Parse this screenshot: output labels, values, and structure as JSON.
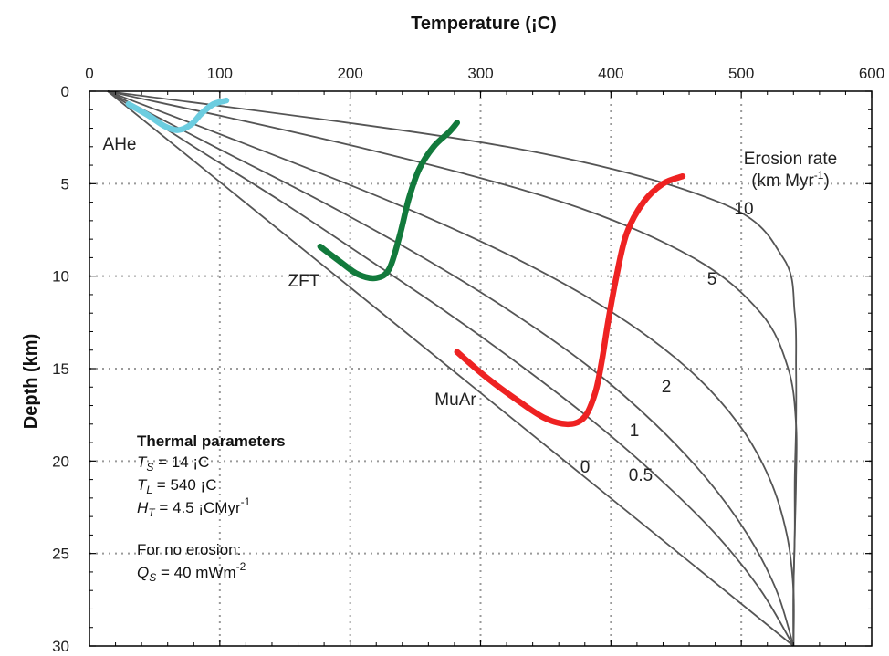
{
  "chart_data": {
    "type": "line",
    "title": "",
    "xlabel": "Temperature (¡C)",
    "ylabel": "Depth (km)",
    "xlim": [
      0,
      600
    ],
    "ylim": [
      30,
      0
    ],
    "x_axis_position": "top",
    "y_inverted": true,
    "grid": true,
    "grid_style": "dotted",
    "x_ticks": [
      0,
      100,
      200,
      300,
      400,
      500,
      600
    ],
    "y_ticks": [
      0,
      5,
      10,
      15,
      20,
      25,
      30
    ],
    "series": [
      {
        "name": "0",
        "color": "#555555",
        "points": [
          [
            14,
            0
          ],
          [
            540,
            30
          ]
        ]
      },
      {
        "name": "0.5",
        "color": "#555555",
        "points": [
          [
            14,
            0
          ],
          [
            80,
            3
          ],
          [
            148,
            6
          ],
          [
            212,
            9
          ],
          [
            275,
            12
          ],
          [
            334,
            15
          ],
          [
            389,
            18
          ],
          [
            438,
            21
          ],
          [
            481,
            24
          ],
          [
            515,
            27
          ],
          [
            540,
            30
          ]
        ]
      },
      {
        "name": "1",
        "color": "#555555",
        "points": [
          [
            14,
            0
          ],
          [
            96,
            3
          ],
          [
            179,
            6
          ],
          [
            256,
            9
          ],
          [
            325,
            12
          ],
          [
            385,
            15
          ],
          [
            434,
            18
          ],
          [
            474,
            21
          ],
          [
            505,
            24
          ],
          [
            527,
            27
          ],
          [
            540,
            30
          ]
        ]
      },
      {
        "name": "2",
        "color": "#555555",
        "points": [
          [
            14,
            0
          ],
          [
            125,
            3
          ],
          [
            232,
            6
          ],
          [
            326,
            9
          ],
          [
            402,
            12
          ],
          [
            459,
            15
          ],
          [
            498,
            18
          ],
          [
            522,
            21
          ],
          [
            535,
            24
          ],
          [
            540,
            27
          ],
          [
            540,
            30
          ]
        ]
      },
      {
        "name": "5",
        "color": "#555555",
        "points": [
          [
            14,
            0
          ],
          [
            205,
            3
          ],
          [
            363,
            6
          ],
          [
            463,
            9
          ],
          [
            515,
            12
          ],
          [
            536,
            15
          ],
          [
            542,
            18
          ],
          [
            542,
            21
          ],
          [
            541,
            24
          ],
          [
            540,
            27
          ],
          [
            540,
            30
          ]
        ]
      },
      {
        "name": "10",
        "color": "#555555",
        "points": [
          [
            14,
            0
          ],
          [
            320,
            3
          ],
          [
            483,
            6
          ],
          [
            532,
            9
          ],
          [
            541,
            12
          ],
          [
            542,
            15
          ],
          [
            542,
            18
          ],
          [
            541,
            21
          ],
          [
            541,
            24
          ],
          [
            540,
            27
          ],
          [
            540,
            30
          ]
        ]
      }
    ],
    "annotations": [
      {
        "name": "AHe",
        "color": "#6ccde0",
        "points": [
          [
            30,
            0.7
          ],
          [
            45,
            1.3
          ],
          [
            58,
            1.9
          ],
          [
            68,
            2.1
          ],
          [
            78,
            1.8
          ],
          [
            86,
            1.2
          ],
          [
            95,
            0.7
          ],
          [
            105,
            0.5
          ]
        ]
      },
      {
        "name": "ZFT",
        "color": "#127a3c",
        "points": [
          [
            177,
            8.4
          ],
          [
            192,
            9.2
          ],
          [
            206,
            9.9
          ],
          [
            220,
            10.1
          ],
          [
            230,
            9.6
          ],
          [
            238,
            7.8
          ],
          [
            245,
            5.8
          ],
          [
            253,
            4.2
          ],
          [
            264,
            3.0
          ],
          [
            276,
            2.2
          ],
          [
            282,
            1.7
          ]
        ]
      },
      {
        "name": "MuAr",
        "color": "#ee2222",
        "points": [
          [
            282,
            14.1
          ],
          [
            305,
            15.5
          ],
          [
            330,
            16.8
          ],
          [
            350,
            17.7
          ],
          [
            368,
            18.0
          ],
          [
            380,
            17.6
          ],
          [
            388,
            16.3
          ],
          [
            393,
            14.6
          ],
          [
            398,
            12.4
          ],
          [
            404,
            10.1
          ],
          [
            412,
            7.7
          ],
          [
            425,
            6.0
          ],
          [
            440,
            5.0
          ],
          [
            455,
            4.6
          ]
        ]
      }
    ],
    "erosion_rate_label": {
      "line1": "Erosion rate",
      "line2_pre": "(km Myr",
      "line2_sup": "-1",
      "line2_post": ")"
    },
    "curve_labels": [
      "10",
      "5",
      "2",
      "1",
      "0",
      "0.5"
    ],
    "thermal_parameters": {
      "heading": "Thermal parameters",
      "ts": {
        "sym": "T",
        "sub": "S",
        "text": " = 14 ¡C"
      },
      "tl": {
        "sym": "T",
        "sub": "L",
        "text": " = 540 ¡C"
      },
      "ht": {
        "sym": "H",
        "sub": "T",
        "text": " = 4.5 ¡CMyr",
        "sup": "-1"
      },
      "no_erosion": "For no erosion:",
      "qs": {
        "sym": "Q",
        "sub": "S",
        "text": " = 40 mWm",
        "sup": "-2"
      }
    }
  }
}
